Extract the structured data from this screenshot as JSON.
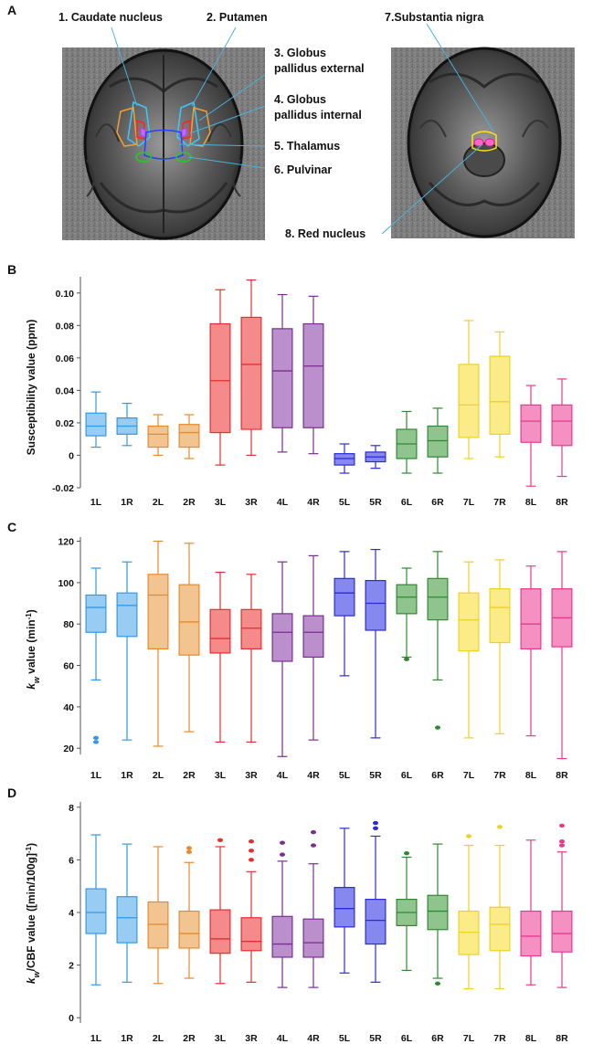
{
  "panels": {
    "a": "A",
    "b": "B",
    "c": "C",
    "d": "D"
  },
  "brain_labels": {
    "caudate": "1. Caudate nucleus",
    "putamen": "2. Putamen",
    "gpe_1": "3. Globus",
    "gpe_2": "pallidus external",
    "gpi_1": "4. Globus",
    "gpi_2": "pallidus internal",
    "thalamus": "5. Thalamus",
    "pulvinar": "6. Pulvinar",
    "substantia_nigra": "7.Substantia nigra",
    "red_nucleus": "8. Red nucleus"
  },
  "axis_labels": {
    "b": "Susceptibility value (ppm)",
    "c_main": "k",
    "c_sub": "w",
    "c_rest": " value (min",
    "c_sup": "-1",
    "c_end": ")",
    "d_main": "k",
    "d_sub": "w",
    "d_rest": "/CBF value ([min/100g]",
    "d_sup": "-1",
    "d_end": ")"
  },
  "colors": {
    "1": {
      "stroke": "#3399e6",
      "fill": "#99ccf3"
    },
    "2": {
      "stroke": "#e68a2e",
      "fill": "#f2c490"
    },
    "3": {
      "stroke": "#e62e2e",
      "fill": "#f48a8a"
    },
    "4": {
      "stroke": "#7a2e8f",
      "fill": "#bb8fcc"
    },
    "5": {
      "stroke": "#2b2bd9",
      "fill": "#8787f0"
    },
    "6": {
      "stroke": "#2e8a2e",
      "fill": "#8fc48f"
    },
    "7": {
      "stroke": "#f0d020",
      "fill": "#fbec8a"
    },
    "8": {
      "stroke": "#e8398c",
      "fill": "#f491c2"
    }
  },
  "chart_data": [
    {
      "type": "box",
      "panel": "B",
      "ylabel": "Susceptibility value (ppm)",
      "ylim": [
        -0.02,
        0.11
      ],
      "yticks": [
        -0.02,
        0,
        0.02,
        0.04,
        0.06,
        0.08,
        0.1
      ],
      "ytick_labels": [
        "-0.02",
        "0",
        "0.02",
        "0.04",
        "0.06",
        "0.08",
        "0.10"
      ],
      "categories": [
        "1L",
        "1R",
        "2L",
        "2R",
        "3L",
        "3R",
        "4L",
        "4R",
        "5L",
        "5R",
        "6L",
        "6R",
        "7L",
        "7R",
        "8L",
        "8R"
      ],
      "boxes": [
        {
          "group": "1",
          "min": 0.005,
          "q1": 0.012,
          "median": 0.018,
          "q3": 0.026,
          "max": 0.039,
          "outliers": []
        },
        {
          "group": "1",
          "min": 0.006,
          "q1": 0.013,
          "median": 0.018,
          "q3": 0.023,
          "max": 0.032,
          "outliers": []
        },
        {
          "group": "2",
          "min": 0.0,
          "q1": 0.005,
          "median": 0.013,
          "q3": 0.018,
          "max": 0.025,
          "outliers": []
        },
        {
          "group": "2",
          "min": -0.002,
          "q1": 0.005,
          "median": 0.014,
          "q3": 0.019,
          "max": 0.025,
          "outliers": []
        },
        {
          "group": "3",
          "min": -0.006,
          "q1": 0.014,
          "median": 0.046,
          "q3": 0.081,
          "max": 0.102,
          "outliers": []
        },
        {
          "group": "3",
          "min": 0.0,
          "q1": 0.016,
          "median": 0.056,
          "q3": 0.085,
          "max": 0.108,
          "outliers": []
        },
        {
          "group": "4",
          "min": 0.002,
          "q1": 0.017,
          "median": 0.052,
          "q3": 0.078,
          "max": 0.099,
          "outliers": []
        },
        {
          "group": "4",
          "min": 0.001,
          "q1": 0.017,
          "median": 0.055,
          "q3": 0.081,
          "max": 0.098,
          "outliers": []
        },
        {
          "group": "5",
          "min": -0.011,
          "q1": -0.006,
          "median": -0.002,
          "q3": 0.001,
          "max": 0.007,
          "outliers": []
        },
        {
          "group": "5",
          "min": -0.008,
          "q1": -0.004,
          "median": -0.001,
          "q3": 0.002,
          "max": 0.006,
          "outliers": []
        },
        {
          "group": "6",
          "min": -0.011,
          "q1": -0.002,
          "median": 0.007,
          "q3": 0.016,
          "max": 0.027,
          "outliers": []
        },
        {
          "group": "6",
          "min": -0.011,
          "q1": -0.001,
          "median": 0.009,
          "q3": 0.018,
          "max": 0.029,
          "outliers": []
        },
        {
          "group": "7",
          "min": -0.002,
          "q1": 0.011,
          "median": 0.031,
          "q3": 0.056,
          "max": 0.083,
          "outliers": []
        },
        {
          "group": "7",
          "min": -0.001,
          "q1": 0.013,
          "median": 0.033,
          "q3": 0.061,
          "max": 0.076,
          "outliers": []
        },
        {
          "group": "8",
          "min": -0.019,
          "q1": 0.008,
          "median": 0.021,
          "q3": 0.031,
          "max": 0.043,
          "outliers": []
        },
        {
          "group": "8",
          "min": -0.013,
          "q1": 0.006,
          "median": 0.021,
          "q3": 0.031,
          "max": 0.047,
          "outliers": []
        }
      ]
    },
    {
      "type": "box",
      "panel": "C",
      "ylabel": "kw value (min-1)",
      "ylim": [
        17,
        122
      ],
      "yticks": [
        20,
        40,
        60,
        80,
        100,
        120
      ],
      "ytick_labels": [
        "20",
        "40",
        "60",
        "80",
        "100",
        "120"
      ],
      "categories": [
        "1L",
        "1R",
        "2L",
        "2R",
        "3L",
        "3R",
        "4L",
        "4R",
        "5L",
        "5R",
        "6L",
        "6R",
        "7L",
        "7R",
        "8L",
        "8R"
      ],
      "boxes": [
        {
          "group": "1",
          "min": 53,
          "q1": 76,
          "median": 88,
          "q3": 94,
          "max": 107,
          "outliers": [
            25,
            23
          ]
        },
        {
          "group": "1",
          "min": 24,
          "q1": 74,
          "median": 89,
          "q3": 95,
          "max": 110,
          "outliers": []
        },
        {
          "group": "2",
          "min": 21,
          "q1": 68,
          "median": 94,
          "q3": 104,
          "max": 120,
          "outliers": []
        },
        {
          "group": "2",
          "min": 28,
          "q1": 65,
          "median": 81,
          "q3": 99,
          "max": 119,
          "outliers": []
        },
        {
          "group": "3",
          "min": 23,
          "q1": 66,
          "median": 73,
          "q3": 87,
          "max": 105,
          "outliers": []
        },
        {
          "group": "3",
          "min": 23,
          "q1": 68,
          "median": 78,
          "q3": 87,
          "max": 104,
          "outliers": []
        },
        {
          "group": "4",
          "min": 16,
          "q1": 62,
          "median": 76,
          "q3": 85,
          "max": 110,
          "outliers": []
        },
        {
          "group": "4",
          "min": 24,
          "q1": 64,
          "median": 76,
          "q3": 84,
          "max": 113,
          "outliers": []
        },
        {
          "group": "5",
          "min": 55,
          "q1": 84,
          "median": 95,
          "q3": 102,
          "max": 115,
          "outliers": []
        },
        {
          "group": "5",
          "min": 25,
          "q1": 77,
          "median": 90,
          "q3": 101,
          "max": 116,
          "outliers": []
        },
        {
          "group": "6",
          "min": 64,
          "q1": 85,
          "median": 93,
          "q3": 99,
          "max": 107,
          "outliers": [
            63
          ]
        },
        {
          "group": "6",
          "min": 53,
          "q1": 82,
          "median": 93,
          "q3": 102,
          "max": 115,
          "outliers": [
            30
          ]
        },
        {
          "group": "7",
          "min": 25,
          "q1": 67,
          "median": 82,
          "q3": 95,
          "max": 110,
          "outliers": []
        },
        {
          "group": "7",
          "min": 27,
          "q1": 71,
          "median": 88,
          "q3": 97,
          "max": 111,
          "outliers": []
        },
        {
          "group": "8",
          "min": 26,
          "q1": 68,
          "median": 80,
          "q3": 97,
          "max": 108,
          "outliers": []
        },
        {
          "group": "8",
          "min": 15,
          "q1": 69,
          "median": 83,
          "q3": 97,
          "max": 115,
          "outliers": []
        }
      ]
    },
    {
      "type": "box",
      "panel": "D",
      "ylabel": "kw/CBF value ([min/100g]-1)",
      "ylim": [
        -0.2,
        8.2
      ],
      "yticks": [
        0,
        2,
        4,
        6,
        8
      ],
      "ytick_labels": [
        "0",
        "2",
        "4",
        "6",
        "8"
      ],
      "categories": [
        "1L",
        "1R",
        "2L",
        "2R",
        "3L",
        "3R",
        "4L",
        "4R",
        "5L",
        "5R",
        "6L",
        "6R",
        "7L",
        "7R",
        "8L",
        "8R"
      ],
      "boxes": [
        {
          "group": "1",
          "min": 1.25,
          "q1": 3.2,
          "median": 4.0,
          "q3": 4.9,
          "max": 6.95,
          "outliers": []
        },
        {
          "group": "1",
          "min": 1.35,
          "q1": 2.85,
          "median": 3.8,
          "q3": 4.6,
          "max": 6.6,
          "outliers": []
        },
        {
          "group": "2",
          "min": 1.3,
          "q1": 2.65,
          "median": 3.55,
          "q3": 4.4,
          "max": 6.5,
          "outliers": []
        },
        {
          "group": "2",
          "min": 1.5,
          "q1": 2.65,
          "median": 3.2,
          "q3": 4.05,
          "max": 5.9,
          "outliers": [
            6.3,
            6.45
          ]
        },
        {
          "group": "3",
          "min": 1.3,
          "q1": 2.45,
          "median": 3.0,
          "q3": 4.1,
          "max": 6.5,
          "outliers": [
            6.75
          ]
        },
        {
          "group": "3",
          "min": 1.35,
          "q1": 2.55,
          "median": 2.9,
          "q3": 3.8,
          "max": 5.55,
          "outliers": [
            6.0,
            6.35,
            6.7
          ]
        },
        {
          "group": "4",
          "min": 1.15,
          "q1": 2.3,
          "median": 2.8,
          "q3": 3.85,
          "max": 5.95,
          "outliers": [
            6.2,
            6.65
          ]
        },
        {
          "group": "4",
          "min": 1.15,
          "q1": 2.3,
          "median": 2.85,
          "q3": 3.75,
          "max": 5.85,
          "outliers": [
            6.55,
            7.05
          ]
        },
        {
          "group": "5",
          "min": 1.7,
          "q1": 3.45,
          "median": 4.15,
          "q3": 4.95,
          "max": 7.2,
          "outliers": []
        },
        {
          "group": "5",
          "min": 1.35,
          "q1": 2.8,
          "median": 3.7,
          "q3": 4.5,
          "max": 6.9,
          "outliers": [
            7.2,
            7.4
          ]
        },
        {
          "group": "6",
          "min": 1.8,
          "q1": 3.5,
          "median": 4.0,
          "q3": 4.5,
          "max": 6.1,
          "outliers": [
            6.25
          ]
        },
        {
          "group": "6",
          "min": 1.5,
          "q1": 3.35,
          "median": 4.05,
          "q3": 4.65,
          "max": 6.6,
          "outliers": [
            1.3
          ]
        },
        {
          "group": "7",
          "min": 1.1,
          "q1": 2.4,
          "median": 3.25,
          "q3": 4.05,
          "max": 6.55,
          "outliers": [
            6.9
          ]
        },
        {
          "group": "7",
          "min": 1.1,
          "q1": 2.55,
          "median": 3.55,
          "q3": 4.2,
          "max": 6.55,
          "outliers": [
            7.25
          ]
        },
        {
          "group": "8",
          "min": 1.25,
          "q1": 2.35,
          "median": 3.1,
          "q3": 4.05,
          "max": 6.75,
          "outliers": []
        },
        {
          "group": "8",
          "min": 1.15,
          "q1": 2.5,
          "median": 3.2,
          "q3": 4.05,
          "max": 6.3,
          "outliers": [
            6.55,
            6.7,
            7.3
          ]
        }
      ]
    }
  ]
}
